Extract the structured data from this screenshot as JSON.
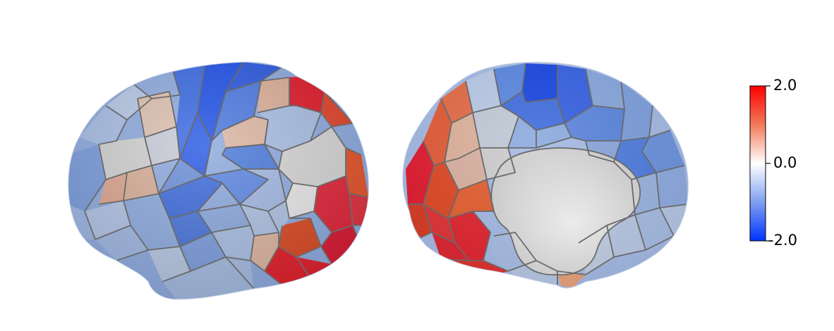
{
  "figure": {
    "views": [
      "left-lateral",
      "left-medial"
    ],
    "colormap": "coolwarm-bwr",
    "parcel_border_color": "#6a6a6a"
  },
  "colorbar": {
    "max_label": "2.0",
    "mid_label": "0.0",
    "min_label": "-2.0",
    "max_value": 2.0,
    "mid_value": 0.0,
    "min_value": -2.0,
    "color_max": "#ff0000",
    "color_mid": "#ffffff",
    "color_min": "#0033ff"
  },
  "palette": {
    "strong_red": "#e0152e",
    "red": "#dc3a20",
    "orange": "#e8643a",
    "salmon": "#dcae98",
    "light_salmon": "#e2c2b2",
    "gray": "#d2d2d2",
    "light_blue": "#b4c6e4",
    "blue": "#7ea2dc",
    "mid_blue": "#5f86e0",
    "dark_blue": "#2f5fe6",
    "deep_blue": "#1846e0"
  }
}
